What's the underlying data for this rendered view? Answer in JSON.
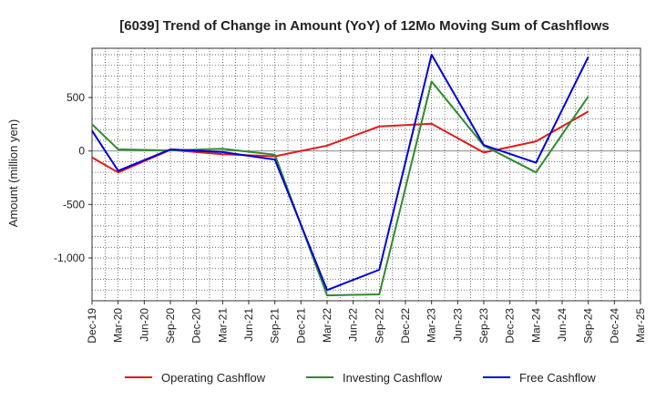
{
  "chart_data": {
    "type": "line",
    "title": "[6039]  Trend of Change in Amount (YoY) of 12Mo Moving Sum of Cashflows",
    "xlabel": "",
    "ylabel": "Amount (million yen)",
    "categories": [
      "Dec-19",
      "Mar-20",
      "Jun-20",
      "Sep-20",
      "Dec-20",
      "Mar-21",
      "Jun-21",
      "Sep-21",
      "Dec-21",
      "Mar-22",
      "Jun-22",
      "Sep-22",
      "Dec-22",
      "Mar-23",
      "Jun-23",
      "Sep-23",
      "Dec-23",
      "Mar-24",
      "Jun-24",
      "Sep-24",
      "Dec-24",
      "Mar-25"
    ],
    "ylim": [
      -1400,
      960
    ],
    "yticks": [
      500,
      0,
      -500,
      -1000
    ],
    "ytick_labels": [
      "500",
      "0",
      "-500",
      "-1,000"
    ],
    "grid": true,
    "legend_position": "bottom",
    "series": [
      {
        "name": "Operating Cashflow",
        "color": "#e31a1c",
        "values": [
          -60,
          -200,
          null,
          10,
          null,
          -30,
          null,
          -50,
          null,
          50,
          null,
          230,
          null,
          255,
          null,
          -15,
          null,
          90,
          null,
          370,
          null,
          null
        ]
      },
      {
        "name": "Investing Cashflow",
        "color": "#2e8b2e",
        "values": [
          250,
          15,
          null,
          5,
          null,
          20,
          null,
          -35,
          null,
          -1350,
          null,
          -1340,
          null,
          650,
          null,
          50,
          null,
          -200,
          null,
          510,
          null,
          null
        ]
      },
      {
        "name": "Free Cashflow",
        "color": "#0000dd",
        "values": [
          190,
          -185,
          null,
          15,
          null,
          -10,
          null,
          -80,
          null,
          -1300,
          null,
          -1110,
          null,
          900,
          null,
          55,
          null,
          -110,
          null,
          880,
          null,
          null
        ]
      }
    ]
  }
}
